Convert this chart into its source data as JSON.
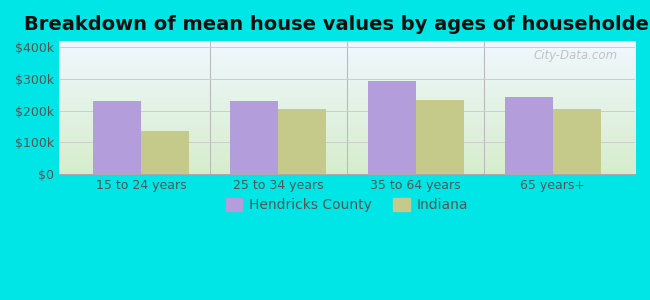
{
  "title": "Breakdown of mean house values by ages of householders",
  "categories": [
    "15 to 24 years",
    "25 to 34 years",
    "35 to 64 years",
    "65 years+"
  ],
  "hendricks_values": [
    230000,
    230000,
    295000,
    245000
  ],
  "indiana_values": [
    135000,
    205000,
    235000,
    207000
  ],
  "hendricks_color": "#b39ddb",
  "indiana_color": "#c5c98a",
  "background_color": "#00e5e5",
  "grad_bottom": "#d6edcc",
  "grad_top": "#f0f8ff",
  "ylabel_ticks": [
    0,
    100000,
    200000,
    300000,
    400000
  ],
  "ylabel_labels": [
    "$0",
    "$100k",
    "$200k",
    "$300k",
    "$400k"
  ],
  "ylim": [
    0,
    420000
  ],
  "bar_width": 0.35,
  "legend_labels": [
    "Hendricks County",
    "Indiana"
  ],
  "title_fontsize": 14,
  "tick_fontsize": 9,
  "legend_fontsize": 10
}
